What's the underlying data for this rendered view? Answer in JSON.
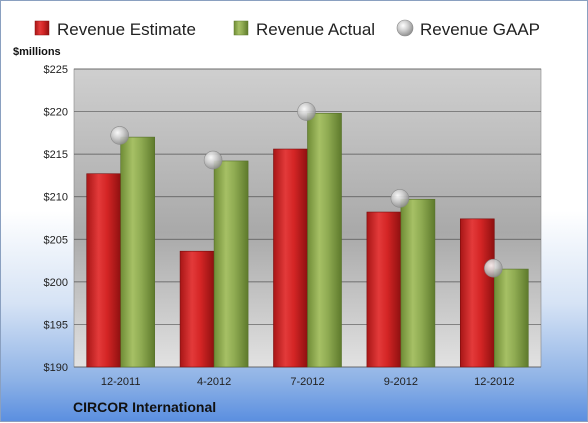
{
  "chart_data": {
    "type": "bar",
    "title": "",
    "unit_label": "$millions",
    "company": "CIRCOR International",
    "categories": [
      "12-2011",
      "4-2012",
      "7-2012",
      "9-2012",
      "12-2012"
    ],
    "ylim": [
      190,
      225
    ],
    "yticks": [
      190,
      195,
      200,
      205,
      210,
      215,
      220,
      225
    ],
    "ytick_labels": [
      "$190",
      "$195",
      "$200",
      "$205",
      "$210",
      "$215",
      "$220",
      "$225"
    ],
    "grid": true,
    "legend_position": "top",
    "series": [
      {
        "name": "Revenue Estimate",
        "kind": "bar",
        "color": "#d62a2a",
        "values": [
          212.7,
          203.6,
          215.6,
          208.2,
          207.4
        ]
      },
      {
        "name": "Revenue Actual",
        "kind": "bar",
        "color": "#8aaa4a",
        "values": [
          217.0,
          214.2,
          219.8,
          209.7,
          201.5
        ]
      },
      {
        "name": "Revenue GAAP",
        "kind": "marker",
        "color": "#c8c8c8",
        "values": [
          217.2,
          214.3,
          220.0,
          209.8,
          201.6
        ]
      }
    ]
  }
}
